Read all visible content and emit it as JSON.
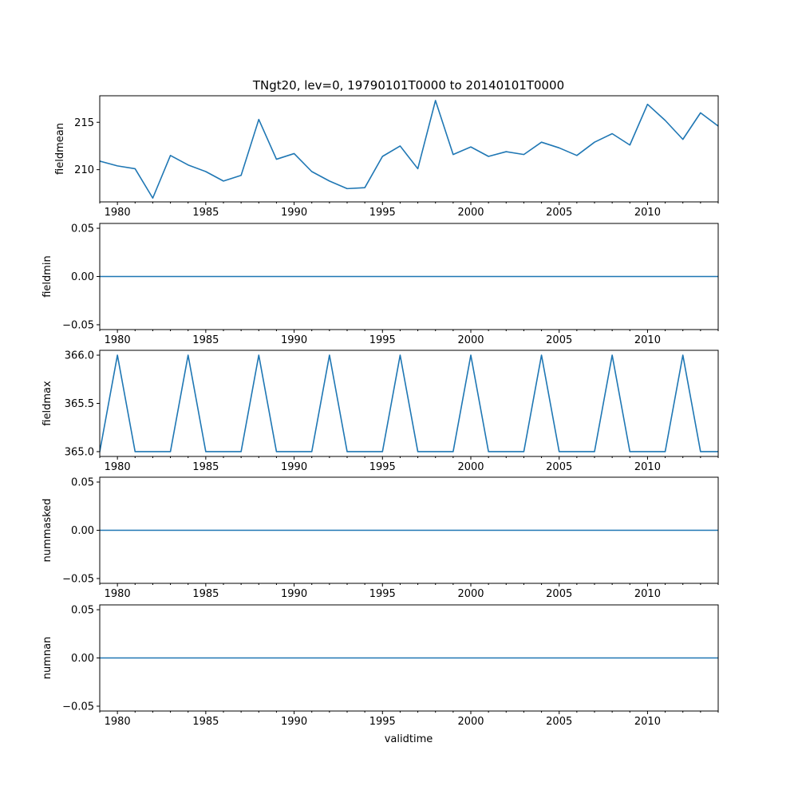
{
  "figure": {
    "title": "TNgt20, lev=0, 19790101T0000 to 20140101T0000",
    "xlabel": "validtime"
  },
  "chart_data": [
    {
      "type": "line",
      "title": "TNgt20, lev=0, 19790101T0000 to 20140101T0000",
      "ylabel": "fieldmean",
      "xlabel": "",
      "x": [
        1979,
        1980,
        1981,
        1982,
        1983,
        1984,
        1985,
        1986,
        1987,
        1988,
        1989,
        1990,
        1991,
        1992,
        1993,
        1994,
        1995,
        1996,
        1997,
        1998,
        1999,
        2000,
        2001,
        2002,
        2003,
        2004,
        2005,
        2006,
        2007,
        2008,
        2009,
        2010,
        2011,
        2012,
        2013,
        2014
      ],
      "values": [
        210.9,
        210.4,
        210.1,
        207.0,
        211.5,
        210.5,
        209.8,
        208.8,
        209.4,
        215.3,
        211.1,
        211.7,
        209.8,
        208.8,
        208.0,
        208.1,
        211.4,
        212.5,
        210.1,
        217.3,
        211.6,
        212.4,
        211.4,
        211.9,
        211.6,
        212.9,
        212.3,
        211.5,
        212.9,
        213.8,
        212.6,
        216.9,
        215.2,
        213.2,
        216.0,
        214.6
      ],
      "xlim": [
        1979,
        2014
      ],
      "ylim": [
        206.6,
        217.8
      ],
      "yticks": [
        210,
        215
      ],
      "xticks": [
        1980,
        1985,
        1990,
        1995,
        2000,
        2005,
        2010
      ],
      "grid": false,
      "color": "#1f77b4"
    },
    {
      "type": "line",
      "ylabel": "fieldmin",
      "xlabel": "",
      "x": [
        1979,
        1980,
        1981,
        1982,
        1983,
        1984,
        1985,
        1986,
        1987,
        1988,
        1989,
        1990,
        1991,
        1992,
        1993,
        1994,
        1995,
        1996,
        1997,
        1998,
        1999,
        2000,
        2001,
        2002,
        2003,
        2004,
        2005,
        2006,
        2007,
        2008,
        2009,
        2010,
        2011,
        2012,
        2013,
        2014
      ],
      "values": [
        0,
        0,
        0,
        0,
        0,
        0,
        0,
        0,
        0,
        0,
        0,
        0,
        0,
        0,
        0,
        0,
        0,
        0,
        0,
        0,
        0,
        0,
        0,
        0,
        0,
        0,
        0,
        0,
        0,
        0,
        0,
        0,
        0,
        0,
        0,
        0
      ],
      "xlim": [
        1979,
        2014
      ],
      "ylim": [
        -0.055,
        0.055
      ],
      "yticks": [
        -0.05,
        0.0,
        0.05
      ],
      "ytick_labels": [
        "−0.05",
        "0.00",
        "0.05"
      ],
      "xticks": [
        1980,
        1985,
        1990,
        1995,
        2000,
        2005,
        2010
      ],
      "grid": false,
      "color": "#1f77b4"
    },
    {
      "type": "line",
      "ylabel": "fieldmax",
      "xlabel": "",
      "x": [
        1979,
        1980,
        1981,
        1982,
        1983,
        1984,
        1985,
        1986,
        1987,
        1988,
        1989,
        1990,
        1991,
        1992,
        1993,
        1994,
        1995,
        1996,
        1997,
        1998,
        1999,
        2000,
        2001,
        2002,
        2003,
        2004,
        2005,
        2006,
        2007,
        2008,
        2009,
        2010,
        2011,
        2012,
        2013,
        2014
      ],
      "values": [
        365,
        366,
        365,
        365,
        365,
        366,
        365,
        365,
        365,
        366,
        365,
        365,
        365,
        366,
        365,
        365,
        365,
        366,
        365,
        365,
        365,
        366,
        365,
        365,
        365,
        366,
        365,
        365,
        365,
        366,
        365,
        365,
        365,
        366,
        365,
        365
      ],
      "xlim": [
        1979,
        2014
      ],
      "ylim": [
        364.95,
        366.05
      ],
      "yticks": [
        365.0,
        365.5,
        366.0
      ],
      "ytick_labels": [
        "365.0",
        "365.5",
        "366.0"
      ],
      "xticks": [
        1980,
        1985,
        1990,
        1995,
        2000,
        2005,
        2010
      ],
      "grid": false,
      "color": "#1f77b4"
    },
    {
      "type": "line",
      "ylabel": "nummasked",
      "xlabel": "",
      "x": [
        1979,
        1980,
        1981,
        1982,
        1983,
        1984,
        1985,
        1986,
        1987,
        1988,
        1989,
        1990,
        1991,
        1992,
        1993,
        1994,
        1995,
        1996,
        1997,
        1998,
        1999,
        2000,
        2001,
        2002,
        2003,
        2004,
        2005,
        2006,
        2007,
        2008,
        2009,
        2010,
        2011,
        2012,
        2013,
        2014
      ],
      "values": [
        0,
        0,
        0,
        0,
        0,
        0,
        0,
        0,
        0,
        0,
        0,
        0,
        0,
        0,
        0,
        0,
        0,
        0,
        0,
        0,
        0,
        0,
        0,
        0,
        0,
        0,
        0,
        0,
        0,
        0,
        0,
        0,
        0,
        0,
        0,
        0
      ],
      "xlim": [
        1979,
        2014
      ],
      "ylim": [
        -0.055,
        0.055
      ],
      "yticks": [
        -0.05,
        0.0,
        0.05
      ],
      "ytick_labels": [
        "−0.05",
        "0.00",
        "0.05"
      ],
      "xticks": [
        1980,
        1985,
        1990,
        1995,
        2000,
        2005,
        2010
      ],
      "grid": false,
      "color": "#1f77b4"
    },
    {
      "type": "line",
      "ylabel": "numnan",
      "xlabel": "validtime",
      "x": [
        1979,
        1980,
        1981,
        1982,
        1983,
        1984,
        1985,
        1986,
        1987,
        1988,
        1989,
        1990,
        1991,
        1992,
        1993,
        1994,
        1995,
        1996,
        1997,
        1998,
        1999,
        2000,
        2001,
        2002,
        2003,
        2004,
        2005,
        2006,
        2007,
        2008,
        2009,
        2010,
        2011,
        2012,
        2013,
        2014
      ],
      "values": [
        0,
        0,
        0,
        0,
        0,
        0,
        0,
        0,
        0,
        0,
        0,
        0,
        0,
        0,
        0,
        0,
        0,
        0,
        0,
        0,
        0,
        0,
        0,
        0,
        0,
        0,
        0,
        0,
        0,
        0,
        0,
        0,
        0,
        0,
        0,
        0
      ],
      "xlim": [
        1979,
        2014
      ],
      "ylim": [
        -0.055,
        0.055
      ],
      "yticks": [
        -0.05,
        0.0,
        0.05
      ],
      "ytick_labels": [
        "−0.05",
        "0.00",
        "0.05"
      ],
      "xticks": [
        1980,
        1985,
        1990,
        1995,
        2000,
        2005,
        2010
      ],
      "grid": false,
      "color": "#1f77b4"
    }
  ]
}
